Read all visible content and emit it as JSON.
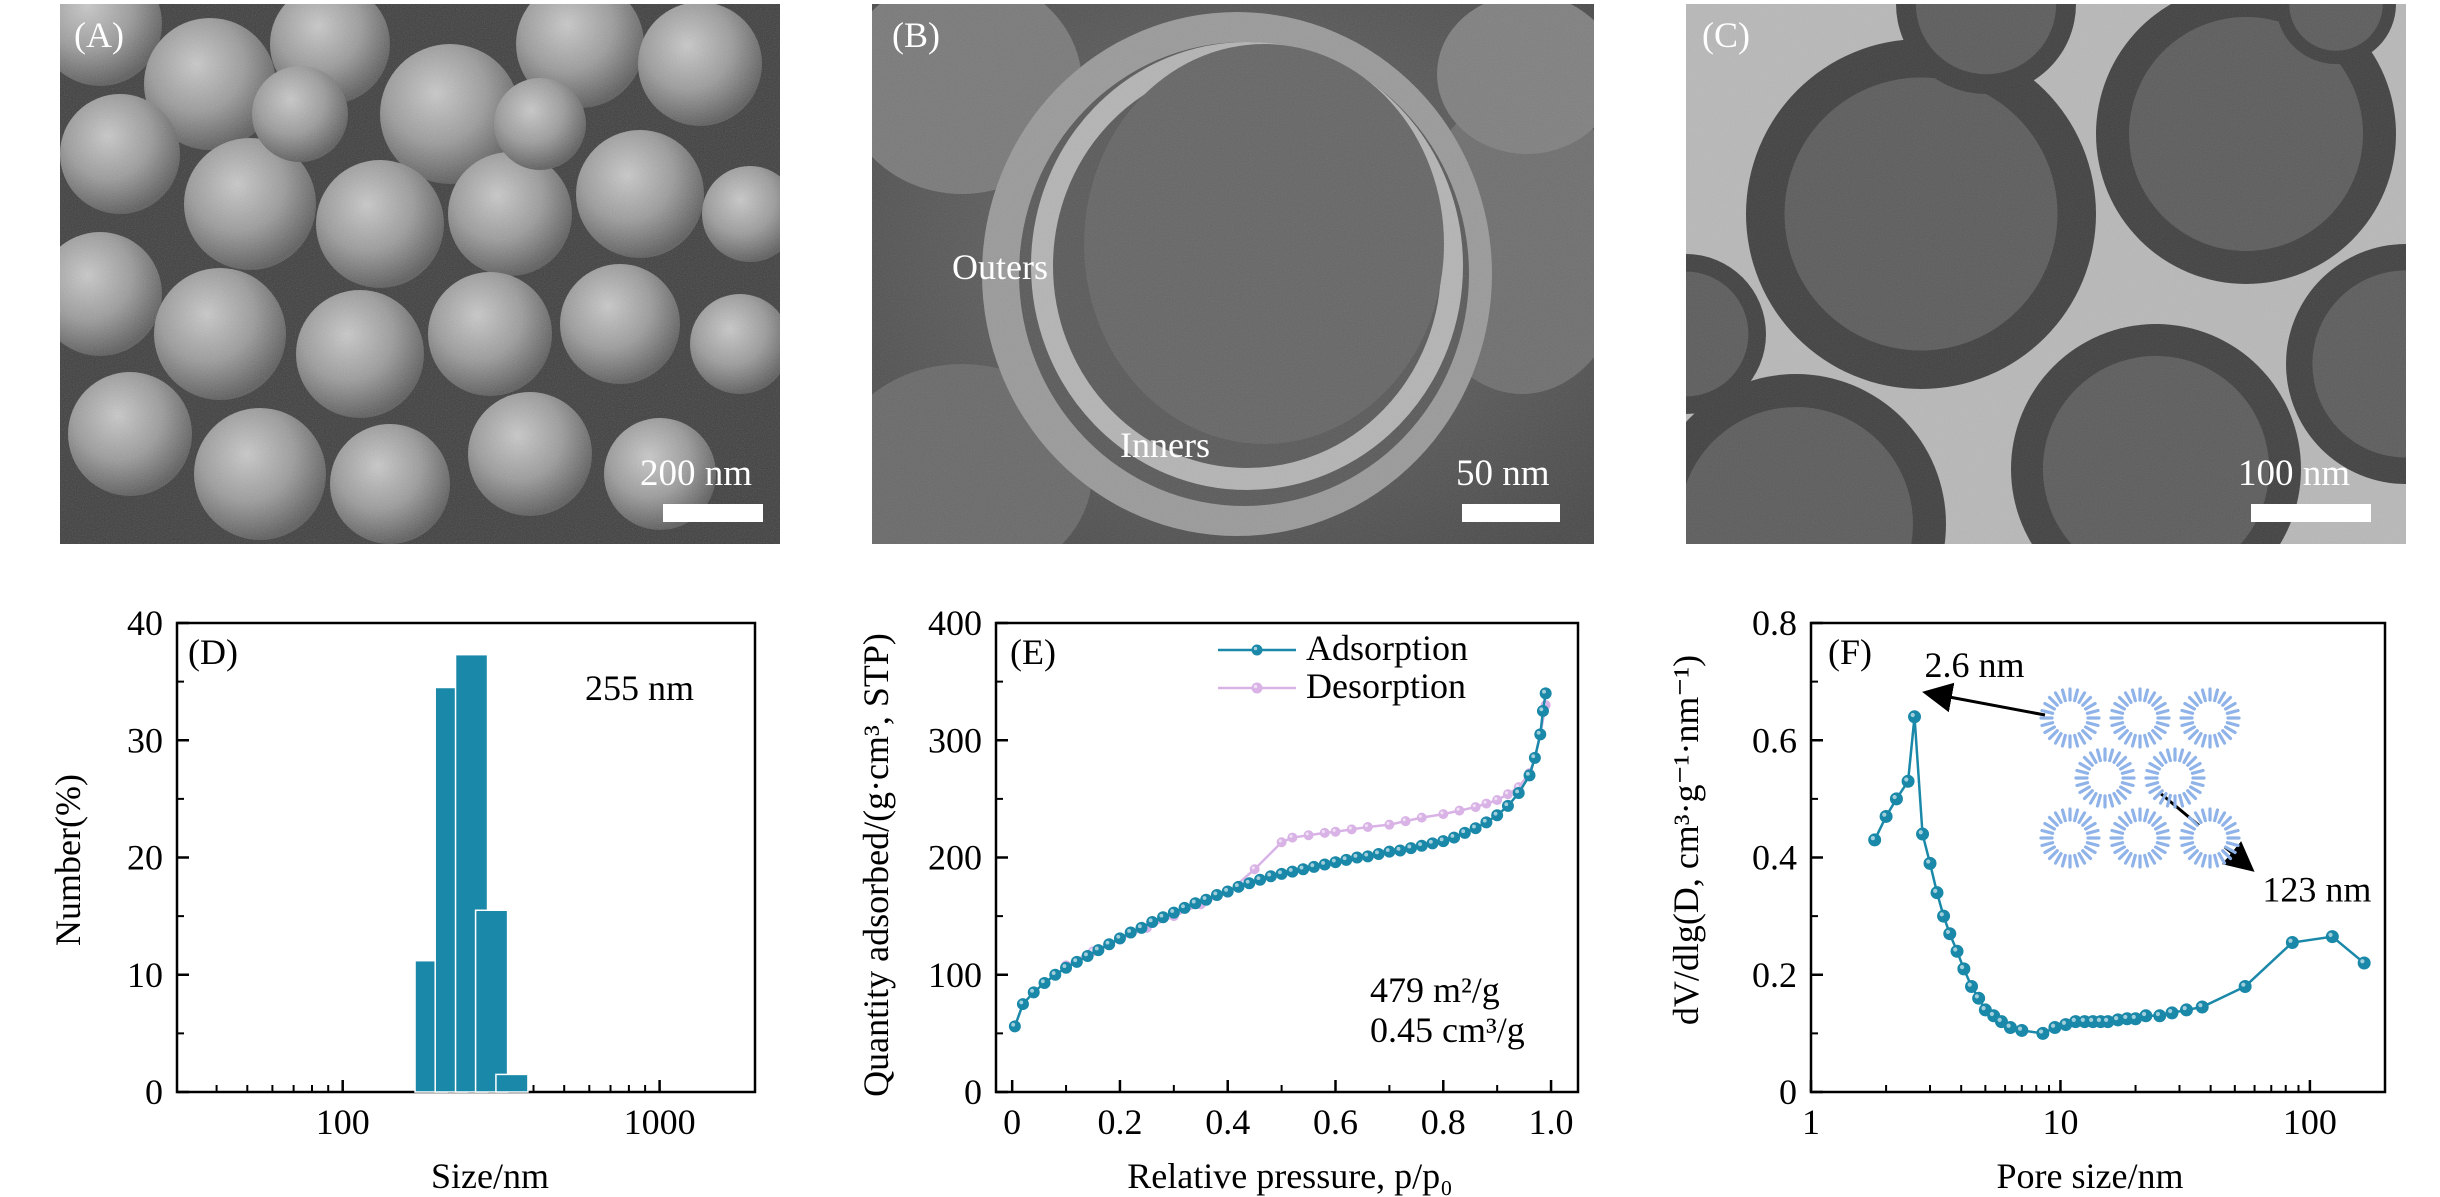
{
  "panels": {
    "A": {
      "label": "(A)",
      "scale": "200 nm"
    },
    "B": {
      "label": "(B)",
      "scale": "50 nm",
      "outer_label": "Outers",
      "inner_label": "Inners"
    },
    "C": {
      "label": "(C)",
      "scale": "100 nm"
    }
  },
  "colors": {
    "series": "#1a88a8",
    "desorption": "#d9b3e6",
    "bars": "#1a88a8"
  },
  "chart_data": [
    {
      "panel": "(D)",
      "type": "bar",
      "ylabel": "Number(%)",
      "xlabel": "Size/nm",
      "annotation": "255 nm",
      "xscale": "log",
      "xlim": [
        30,
        2000
      ],
      "ylim": [
        0,
        40
      ],
      "xticks": [
        {
          "v": 100,
          "l": "100"
        },
        {
          "v": 1000,
          "l": "1000"
        }
      ],
      "yticks": [
        {
          "v": 0,
          "l": "0"
        },
        {
          "v": 10,
          "l": "10"
        },
        {
          "v": 20,
          "l": "20"
        },
        {
          "v": 30,
          "l": "30"
        },
        {
          "v": 40,
          "l": "40"
        }
      ],
      "bars": [
        {
          "x": 190,
          "value": 11.2
        },
        {
          "x": 220,
          "value": 34.5
        },
        {
          "x": 255,
          "value": 37.3
        },
        {
          "x": 295,
          "value": 15.5
        },
        {
          "x": 342,
          "value": 1.5
        }
      ]
    },
    {
      "panel": "(E)",
      "type": "line",
      "ylabel": "Quantity adsorbed/(g·cm³, STP)",
      "xlabel": "Relative pressure, p/p₀",
      "annotation": [
        "479 m²/g",
        "0.45 cm³/g"
      ],
      "xlim": [
        -0.03,
        1.05
      ],
      "ylim": [
        0,
        400
      ],
      "xticks": [
        {
          "v": 0,
          "l": "0"
        },
        {
          "v": 0.2,
          "l": "0.2"
        },
        {
          "v": 0.4,
          "l": "0.4"
        },
        {
          "v": 0.6,
          "l": "0.6"
        },
        {
          "v": 0.8,
          "l": "0.8"
        },
        {
          "v": 1.0,
          "l": "1.0"
        }
      ],
      "yticks": [
        {
          "v": 0,
          "l": "0"
        },
        {
          "v": 100,
          "l": "100"
        },
        {
          "v": 200,
          "l": "200"
        },
        {
          "v": 300,
          "l": "300"
        },
        {
          "v": 400,
          "l": "400"
        }
      ],
      "legend": "top-right",
      "series": [
        {
          "name": "Adsorption",
          "x": [
            0.005,
            0.02,
            0.04,
            0.06,
            0.08,
            0.1,
            0.12,
            0.14,
            0.16,
            0.18,
            0.2,
            0.22,
            0.24,
            0.26,
            0.28,
            0.3,
            0.32,
            0.34,
            0.36,
            0.38,
            0.4,
            0.42,
            0.44,
            0.46,
            0.48,
            0.5,
            0.52,
            0.54,
            0.56,
            0.58,
            0.6,
            0.62,
            0.64,
            0.66,
            0.68,
            0.7,
            0.72,
            0.74,
            0.76,
            0.78,
            0.8,
            0.82,
            0.84,
            0.86,
            0.88,
            0.9,
            0.92,
            0.94,
            0.96,
            0.97,
            0.98,
            0.985,
            0.99
          ],
          "y": [
            56,
            75,
            85,
            93,
            100,
            106,
            111,
            116,
            121,
            126,
            131,
            136,
            140,
            145,
            149,
            153,
            157,
            161,
            164,
            168,
            171,
            175,
            178,
            181,
            184,
            186,
            188,
            190,
            192,
            194,
            196,
            198,
            200,
            201,
            203,
            205,
            206,
            208,
            210,
            212,
            214,
            217,
            221,
            225,
            230,
            236,
            244,
            255,
            270,
            285,
            305,
            325,
            340
          ]
        },
        {
          "name": "Desorption",
          "x": [
            0.1,
            0.15,
            0.2,
            0.25,
            0.3,
            0.35,
            0.4,
            0.45,
            0.5,
            0.52,
            0.55,
            0.58,
            0.6,
            0.63,
            0.66,
            0.7,
            0.73,
            0.76,
            0.8,
            0.83,
            0.86,
            0.88,
            0.9,
            0.92,
            0.94,
            0.96,
            0.97,
            0.98,
            0.99
          ],
          "y": [
            108,
            120,
            130,
            140,
            150,
            160,
            170,
            190,
            213,
            217,
            219,
            221,
            222,
            224,
            226,
            228,
            231,
            234,
            237,
            240,
            243,
            246,
            249,
            254,
            260,
            272,
            285,
            305,
            330
          ]
        }
      ]
    },
    {
      "panel": "(F)",
      "type": "line",
      "ylabel": "dV/dlg(D, cm³·g⁻¹·nm⁻¹)",
      "xlabel": "Pore size/nm",
      "xscale": "log",
      "xlim": [
        1,
        200
      ],
      "ylim": [
        0,
        0.8
      ],
      "xticks": [
        {
          "v": 1,
          "l": "1"
        },
        {
          "v": 10,
          "l": "10"
        },
        {
          "v": 100,
          "l": "100"
        }
      ],
      "yticks": [
        {
          "v": 0,
          "l": "0"
        },
        {
          "v": 0.2,
          "l": "0.2"
        },
        {
          "v": 0.4,
          "l": "0.4"
        },
        {
          "v": 0.6,
          "l": "0.6"
        },
        {
          "v": 0.8,
          "l": "0.8"
        }
      ],
      "annotations": [
        {
          "text": "2.6 nm",
          "x": 2.6,
          "y": 0.64
        },
        {
          "text": "123 nm",
          "x": 123,
          "y": 0.26
        }
      ],
      "series": [
        {
          "x": [
            1.8,
            2.0,
            2.2,
            2.45,
            2.6,
            2.8,
            3.0,
            3.2,
            3.4,
            3.6,
            3.85,
            4.1,
            4.4,
            4.7,
            5.0,
            5.4,
            5.8,
            6.3,
            7.0,
            8.5,
            9.5,
            10.5,
            11.5,
            12.5,
            13.5,
            14.5,
            15.5,
            17,
            18.5,
            20,
            22,
            25,
            28,
            32,
            37,
            55,
            85,
            123,
            165
          ],
          "y": [
            0.43,
            0.47,
            0.5,
            0.53,
            0.64,
            0.44,
            0.39,
            0.34,
            0.3,
            0.27,
            0.24,
            0.21,
            0.18,
            0.16,
            0.14,
            0.13,
            0.12,
            0.11,
            0.105,
            0.1,
            0.11,
            0.115,
            0.12,
            0.12,
            0.12,
            0.12,
            0.12,
            0.123,
            0.125,
            0.125,
            0.13,
            0.13,
            0.135,
            0.14,
            0.145,
            0.18,
            0.255,
            0.265,
            0.22
          ]
        }
      ]
    }
  ]
}
